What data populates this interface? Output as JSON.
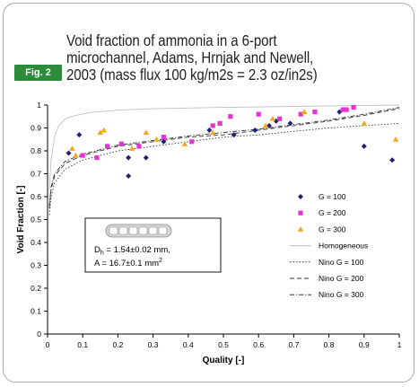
{
  "figure": {
    "badge": "Fig. 2",
    "title_lines": [
      "Void fraction of ammonia in a 6-port",
      "microchannel, Adams, Hrnjak and Newell,",
      "2003 (mass flux 100 kg/m2s = 2.3 oz/in2s)"
    ]
  },
  "chart_data": {
    "type": "scatter",
    "title": "Void fraction of ammonia in a 6-port microchannel, Adams, Hrnjak and Newell, 2003 (mass flux 100 kg/m2s = 2.3 oz/in2s)",
    "xlabel": "Quality [-]",
    "ylabel": "Void Fraction [-]",
    "xlim": [
      0,
      1
    ],
    "ylim": [
      0,
      1
    ],
    "xticks": [
      "0",
      "0.1",
      "0.2",
      "0.3",
      "0.4",
      "0.5",
      "0.6",
      "0.7",
      "0.8",
      "0.9",
      "1"
    ],
    "yticks": [
      "0",
      "0.1",
      "0.2",
      "0.3",
      "0.4",
      "0.5",
      "0.6",
      "0.7",
      "0.8",
      "0.9",
      "1"
    ],
    "grid": false,
    "legend_position": "right",
    "series": [
      {
        "name": "G = 100",
        "kind": "points",
        "marker": "diamond",
        "color": "#1f1f7a",
        "points": [
          [
            0.06,
            0.79
          ],
          [
            0.09,
            0.87
          ],
          [
            0.23,
            0.69
          ],
          [
            0.23,
            0.77
          ],
          [
            0.28,
            0.77
          ],
          [
            0.33,
            0.84
          ],
          [
            0.46,
            0.89
          ],
          [
            0.53,
            0.87
          ],
          [
            0.59,
            0.89
          ],
          [
            0.63,
            0.91
          ],
          [
            0.65,
            0.93
          ],
          [
            0.69,
            0.92
          ],
          [
            0.83,
            0.97
          ],
          [
            0.9,
            0.82
          ],
          [
            0.98,
            0.76
          ]
        ]
      },
      {
        "name": "G = 200",
        "kind": "points",
        "marker": "square",
        "color": "#e633d6",
        "points": [
          [
            0.1,
            0.78
          ],
          [
            0.14,
            0.77
          ],
          [
            0.17,
            0.82
          ],
          [
            0.21,
            0.83
          ],
          [
            0.26,
            0.82
          ],
          [
            0.33,
            0.86
          ],
          [
            0.41,
            0.84
          ],
          [
            0.47,
            0.91
          ],
          [
            0.49,
            0.92
          ],
          [
            0.52,
            0.95
          ],
          [
            0.6,
            0.96
          ],
          [
            0.66,
            0.94
          ],
          [
            0.72,
            0.96
          ],
          [
            0.76,
            0.97
          ],
          [
            0.84,
            0.98
          ],
          [
            0.85,
            0.98
          ],
          [
            0.87,
            0.99
          ]
        ]
      },
      {
        "name": "G = 300",
        "kind": "points",
        "marker": "triangle",
        "color": "#f5a623",
        "points": [
          [
            0.07,
            0.81
          ],
          [
            0.08,
            0.78
          ],
          [
            0.15,
            0.88
          ],
          [
            0.16,
            0.89
          ],
          [
            0.24,
            0.81
          ],
          [
            0.28,
            0.88
          ],
          [
            0.31,
            0.85
          ],
          [
            0.39,
            0.83
          ],
          [
            0.47,
            0.88
          ],
          [
            0.62,
            0.91
          ],
          [
            0.64,
            0.94
          ],
          [
            0.73,
            0.97
          ],
          [
            0.9,
            0.92
          ],
          [
            0.99,
            0.85
          ]
        ]
      },
      {
        "name": "Homogeneous",
        "kind": "line",
        "style": "solid",
        "color": "#c0c0c0",
        "points": [
          [
            0.005,
            0.63
          ],
          [
            0.01,
            0.76
          ],
          [
            0.02,
            0.86
          ],
          [
            0.03,
            0.905
          ],
          [
            0.05,
            0.94
          ],
          [
            0.08,
            0.955
          ],
          [
            0.12,
            0.967
          ],
          [
            0.2,
            0.978
          ],
          [
            0.3,
            0.984
          ],
          [
            0.5,
            0.99
          ],
          [
            0.7,
            0.994
          ],
          [
            1,
            1
          ]
        ]
      },
      {
        "name": "Nino G = 100",
        "kind": "line",
        "style": "dotted",
        "color": "#333333",
        "points": [
          [
            0.005,
            0.52
          ],
          [
            0.01,
            0.6
          ],
          [
            0.02,
            0.66
          ],
          [
            0.05,
            0.72
          ],
          [
            0.1,
            0.76
          ],
          [
            0.2,
            0.8
          ],
          [
            0.3,
            0.82
          ],
          [
            0.4,
            0.84
          ],
          [
            0.5,
            0.86
          ],
          [
            0.6,
            0.87
          ],
          [
            0.7,
            0.885
          ],
          [
            0.8,
            0.9
          ],
          [
            0.9,
            0.91
          ],
          [
            1,
            0.92
          ]
        ]
      },
      {
        "name": "Nino G = 200",
        "kind": "line",
        "style": "dashed",
        "color": "#333333",
        "points": [
          [
            0.005,
            0.55
          ],
          [
            0.01,
            0.63
          ],
          [
            0.02,
            0.69
          ],
          [
            0.05,
            0.745
          ],
          [
            0.1,
            0.78
          ],
          [
            0.2,
            0.82
          ],
          [
            0.3,
            0.84
          ],
          [
            0.4,
            0.86
          ],
          [
            0.5,
            0.87
          ],
          [
            0.6,
            0.89
          ],
          [
            0.7,
            0.91
          ],
          [
            0.8,
            0.93
          ],
          [
            0.9,
            0.955
          ],
          [
            1,
            0.985
          ]
        ]
      },
      {
        "name": "Nino G = 300",
        "kind": "line",
        "style": "dashdot",
        "color": "#333333",
        "points": [
          [
            0.005,
            0.56
          ],
          [
            0.01,
            0.64
          ],
          [
            0.02,
            0.7
          ],
          [
            0.05,
            0.755
          ],
          [
            0.1,
            0.785
          ],
          [
            0.2,
            0.825
          ],
          [
            0.3,
            0.845
          ],
          [
            0.4,
            0.865
          ],
          [
            0.5,
            0.88
          ],
          [
            0.6,
            0.895
          ],
          [
            0.7,
            0.915
          ],
          [
            0.8,
            0.935
          ],
          [
            0.9,
            0.96
          ],
          [
            1,
            0.99
          ]
        ]
      }
    ],
    "annotation": {
      "line1_prefix": "D",
      "line1_sub": "h",
      "line1_rest": " = 1.54±0.02 mm,",
      "line2_prefix": "A = 16.7±0.1 mm",
      "line2_sup": "2",
      "channel_ports": 6
    }
  }
}
